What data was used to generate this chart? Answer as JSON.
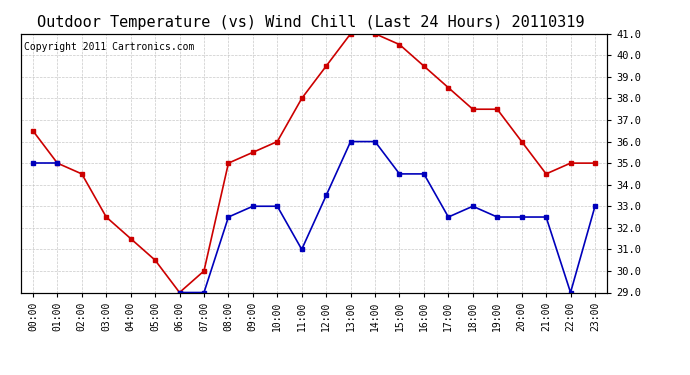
{
  "title": "Outdoor Temperature (vs) Wind Chill (Last 24 Hours) 20110319",
  "copyright": "Copyright 2011 Cartronics.com",
  "x_labels": [
    "00:00",
    "01:00",
    "02:00",
    "03:00",
    "04:00",
    "05:00",
    "06:00",
    "07:00",
    "08:00",
    "09:00",
    "10:00",
    "11:00",
    "12:00",
    "13:00",
    "14:00",
    "15:00",
    "16:00",
    "17:00",
    "18:00",
    "19:00",
    "20:00",
    "21:00",
    "22:00",
    "23:00"
  ],
  "red_data": [
    36.5,
    35.0,
    34.5,
    32.5,
    31.5,
    30.5,
    29.0,
    30.0,
    35.0,
    35.5,
    36.0,
    38.0,
    39.5,
    41.0,
    41.0,
    40.5,
    39.5,
    38.5,
    37.5,
    37.5,
    36.0,
    34.5,
    35.0,
    35.0
  ],
  "blue_data": [
    35.0,
    35.0,
    null,
    null,
    null,
    null,
    29.0,
    29.0,
    32.5,
    33.0,
    33.0,
    31.0,
    33.5,
    36.0,
    36.0,
    34.5,
    34.5,
    32.5,
    33.0,
    32.5,
    32.5,
    32.5,
    29.0,
    33.0
  ],
  "ylim": [
    29.0,
    41.0
  ],
  "yticks": [
    29.0,
    30.0,
    31.0,
    32.0,
    33.0,
    34.0,
    35.0,
    36.0,
    37.0,
    38.0,
    39.0,
    40.0,
    41.0
  ],
  "red_color": "#cc0000",
  "blue_color": "#0000bb",
  "bg_color": "#ffffff",
  "plot_bg": "#ffffff",
  "grid_color": "#bbbbbb",
  "title_fontsize": 11,
  "copyright_fontsize": 7,
  "tick_fontsize": 7.5,
  "x_tick_fontsize": 7
}
